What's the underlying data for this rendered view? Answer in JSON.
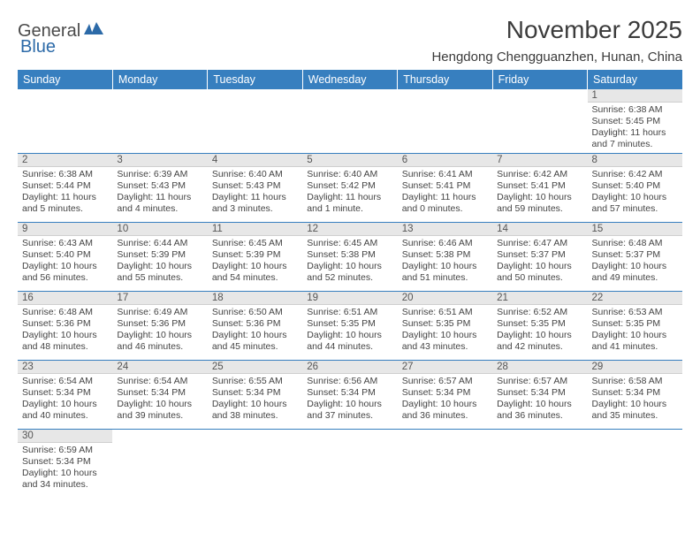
{
  "logo": {
    "text1": "General",
    "text2": "Blue"
  },
  "title": "November 2025",
  "location": "Hengdong Chengguanzhen, Hunan, China",
  "colors": {
    "header_bg": "#377fbf",
    "header_text": "#ffffff",
    "daynum_bg": "#e7e7e7",
    "border": "#377fbf"
  },
  "weekdays": [
    "Sunday",
    "Monday",
    "Tuesday",
    "Wednesday",
    "Thursday",
    "Friday",
    "Saturday"
  ],
  "weeks": [
    [
      null,
      null,
      null,
      null,
      null,
      null,
      {
        "n": "1",
        "sr": "6:38 AM",
        "ss": "5:45 PM",
        "dl": "11 hours and 7 minutes."
      }
    ],
    [
      {
        "n": "2",
        "sr": "6:38 AM",
        "ss": "5:44 PM",
        "dl": "11 hours and 5 minutes."
      },
      {
        "n": "3",
        "sr": "6:39 AM",
        "ss": "5:43 PM",
        "dl": "11 hours and 4 minutes."
      },
      {
        "n": "4",
        "sr": "6:40 AM",
        "ss": "5:43 PM",
        "dl": "11 hours and 3 minutes."
      },
      {
        "n": "5",
        "sr": "6:40 AM",
        "ss": "5:42 PM",
        "dl": "11 hours and 1 minute."
      },
      {
        "n": "6",
        "sr": "6:41 AM",
        "ss": "5:41 PM",
        "dl": "11 hours and 0 minutes."
      },
      {
        "n": "7",
        "sr": "6:42 AM",
        "ss": "5:41 PM",
        "dl": "10 hours and 59 minutes."
      },
      {
        "n": "8",
        "sr": "6:42 AM",
        "ss": "5:40 PM",
        "dl": "10 hours and 57 minutes."
      }
    ],
    [
      {
        "n": "9",
        "sr": "6:43 AM",
        "ss": "5:40 PM",
        "dl": "10 hours and 56 minutes."
      },
      {
        "n": "10",
        "sr": "6:44 AM",
        "ss": "5:39 PM",
        "dl": "10 hours and 55 minutes."
      },
      {
        "n": "11",
        "sr": "6:45 AM",
        "ss": "5:39 PM",
        "dl": "10 hours and 54 minutes."
      },
      {
        "n": "12",
        "sr": "6:45 AM",
        "ss": "5:38 PM",
        "dl": "10 hours and 52 minutes."
      },
      {
        "n": "13",
        "sr": "6:46 AM",
        "ss": "5:38 PM",
        "dl": "10 hours and 51 minutes."
      },
      {
        "n": "14",
        "sr": "6:47 AM",
        "ss": "5:37 PM",
        "dl": "10 hours and 50 minutes."
      },
      {
        "n": "15",
        "sr": "6:48 AM",
        "ss": "5:37 PM",
        "dl": "10 hours and 49 minutes."
      }
    ],
    [
      {
        "n": "16",
        "sr": "6:48 AM",
        "ss": "5:36 PM",
        "dl": "10 hours and 48 minutes."
      },
      {
        "n": "17",
        "sr": "6:49 AM",
        "ss": "5:36 PM",
        "dl": "10 hours and 46 minutes."
      },
      {
        "n": "18",
        "sr": "6:50 AM",
        "ss": "5:36 PM",
        "dl": "10 hours and 45 minutes."
      },
      {
        "n": "19",
        "sr": "6:51 AM",
        "ss": "5:35 PM",
        "dl": "10 hours and 44 minutes."
      },
      {
        "n": "20",
        "sr": "6:51 AM",
        "ss": "5:35 PM",
        "dl": "10 hours and 43 minutes."
      },
      {
        "n": "21",
        "sr": "6:52 AM",
        "ss": "5:35 PM",
        "dl": "10 hours and 42 minutes."
      },
      {
        "n": "22",
        "sr": "6:53 AM",
        "ss": "5:35 PM",
        "dl": "10 hours and 41 minutes."
      }
    ],
    [
      {
        "n": "23",
        "sr": "6:54 AM",
        "ss": "5:34 PM",
        "dl": "10 hours and 40 minutes."
      },
      {
        "n": "24",
        "sr": "6:54 AM",
        "ss": "5:34 PM",
        "dl": "10 hours and 39 minutes."
      },
      {
        "n": "25",
        "sr": "6:55 AM",
        "ss": "5:34 PM",
        "dl": "10 hours and 38 minutes."
      },
      {
        "n": "26",
        "sr": "6:56 AM",
        "ss": "5:34 PM",
        "dl": "10 hours and 37 minutes."
      },
      {
        "n": "27",
        "sr": "6:57 AM",
        "ss": "5:34 PM",
        "dl": "10 hours and 36 minutes."
      },
      {
        "n": "28",
        "sr": "6:57 AM",
        "ss": "5:34 PM",
        "dl": "10 hours and 36 minutes."
      },
      {
        "n": "29",
        "sr": "6:58 AM",
        "ss": "5:34 PM",
        "dl": "10 hours and 35 minutes."
      }
    ],
    [
      {
        "n": "30",
        "sr": "6:59 AM",
        "ss": "5:34 PM",
        "dl": "10 hours and 34 minutes."
      },
      null,
      null,
      null,
      null,
      null,
      null
    ]
  ],
  "labels": {
    "sunrise": "Sunrise: ",
    "sunset": "Sunset: ",
    "daylight": "Daylight: "
  }
}
